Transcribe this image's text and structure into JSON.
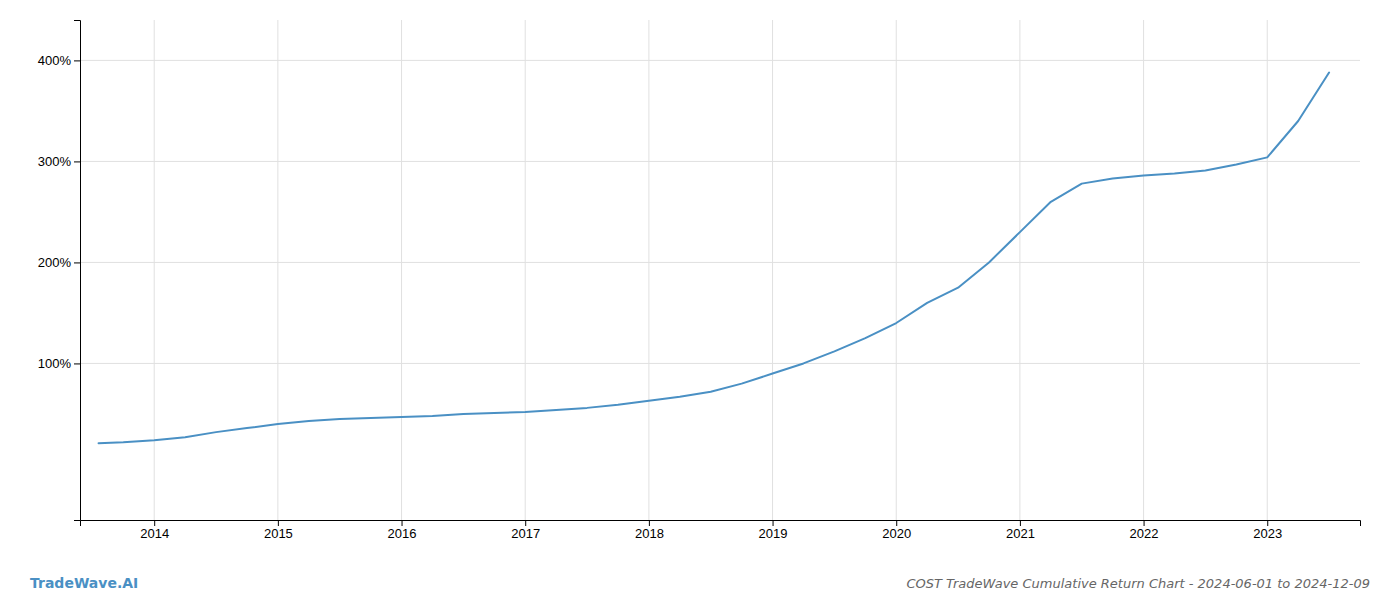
{
  "chart_data": {
    "type": "line",
    "title": "COST TradeWave Cumulative Return Chart - 2024-06-01 to 2024-12-09",
    "annotations": [
      "TradeWave.AI"
    ],
    "color": "#4a90c4",
    "grid": true,
    "x": [
      2013.55,
      2013.75,
      2014.0,
      2014.25,
      2014.5,
      2014.75,
      2015.0,
      2015.25,
      2015.5,
      2015.75,
      2016.0,
      2016.25,
      2016.5,
      2016.75,
      2017.0,
      2017.25,
      2017.5,
      2017.75,
      2018.0,
      2018.25,
      2018.5,
      2018.75,
      2019.0,
      2019.25,
      2019.5,
      2019.75,
      2020.0,
      2020.25,
      2020.5,
      2020.75,
      2021.0,
      2021.25,
      2021.5,
      2021.75,
      2022.0,
      2022.25,
      2022.5,
      2022.75,
      2023.0,
      2023.25,
      2023.5
    ],
    "values": [
      21,
      22,
      24,
      27,
      32,
      36,
      40,
      43,
      45,
      46,
      47,
      48,
      50,
      51,
      52,
      54,
      56,
      59,
      63,
      67,
      72,
      80,
      90,
      100,
      112,
      125,
      140,
      160,
      175,
      200,
      230,
      260,
      278,
      283,
      286,
      288,
      291,
      297,
      304,
      340,
      388
    ],
    "xlim": [
      2013.4,
      2023.75
    ],
    "xticks": [
      2014,
      2015,
      2016,
      2017,
      2018,
      2019,
      2020,
      2021,
      2022,
      2023
    ],
    "ylim": [
      -55,
      440
    ],
    "yticks": [
      {
        "value": 100,
        "label": "100%"
      },
      {
        "value": 200,
        "label": "200%"
      },
      {
        "value": 300,
        "label": "300%"
      },
      {
        "value": 400,
        "label": "400%"
      }
    ]
  }
}
